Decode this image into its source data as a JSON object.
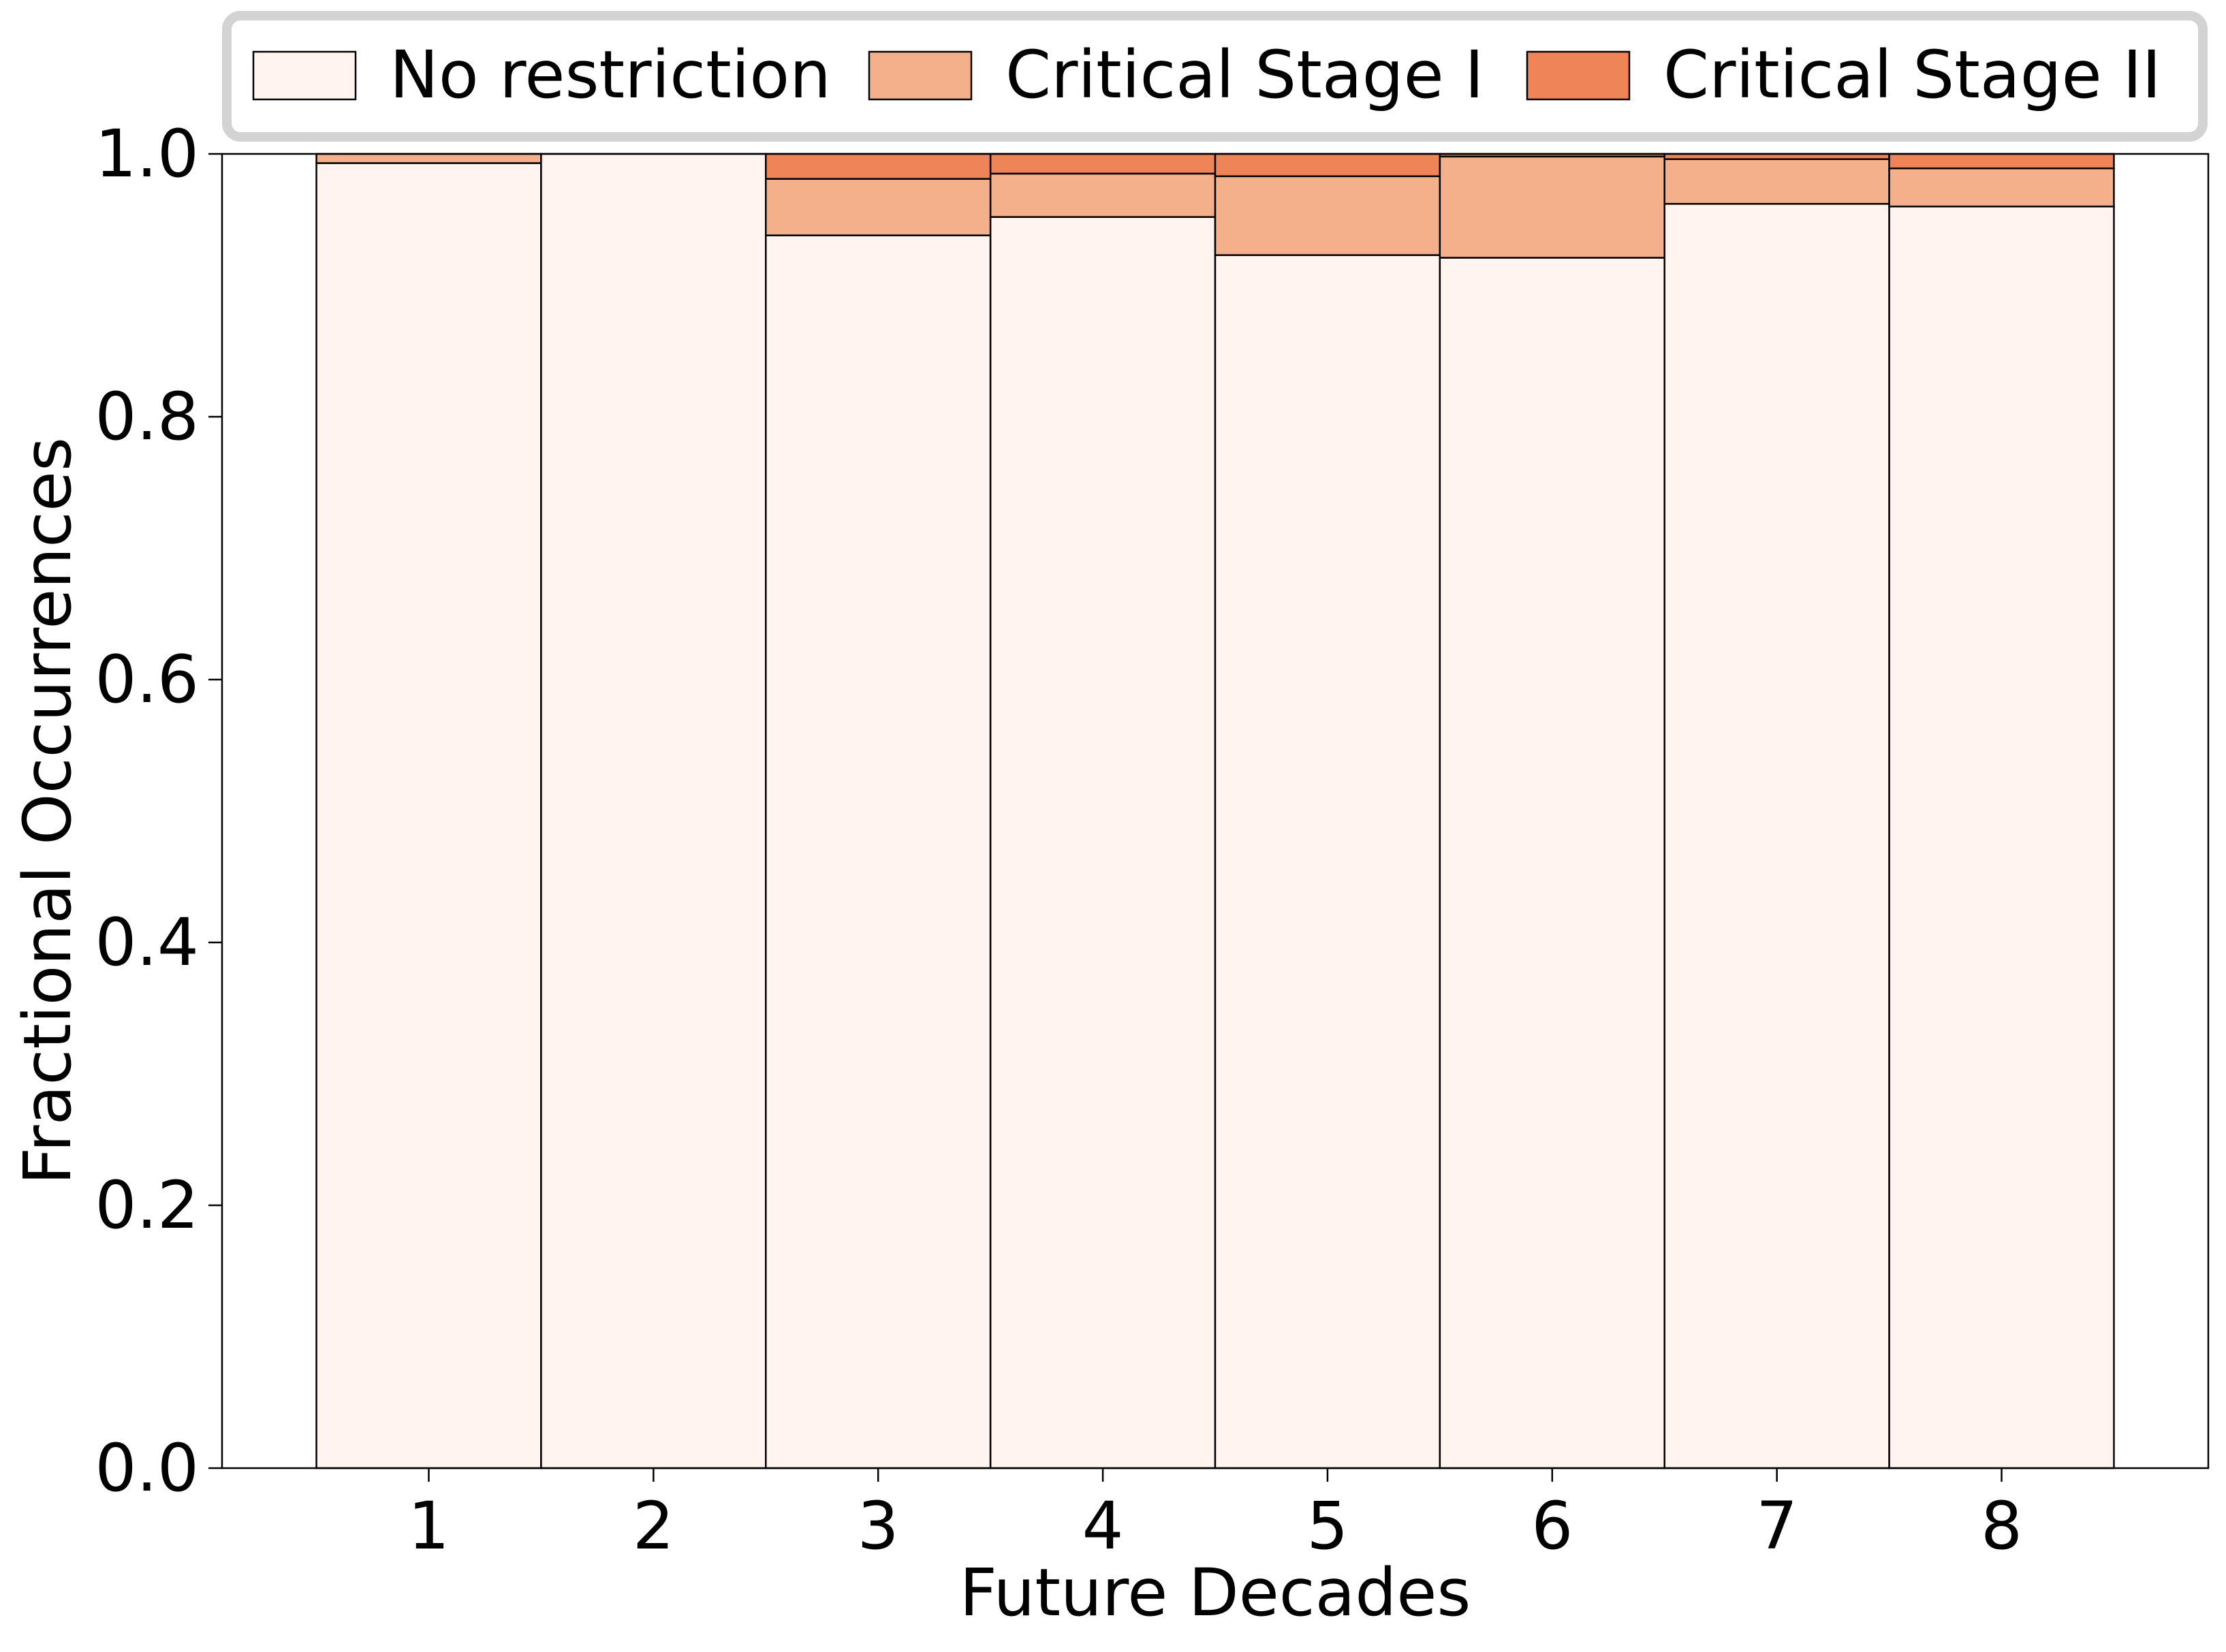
{
  "chart_data": {
    "type": "bar",
    "stacked": true,
    "xlabel": "Future Decades",
    "ylabel": "Fractional Occurrences",
    "categories": [
      "1",
      "2",
      "3",
      "4",
      "5",
      "6",
      "7",
      "8"
    ],
    "ylim": [
      0,
      1.0
    ],
    "yticks": [
      "0.0",
      "0.2",
      "0.4",
      "0.6",
      "0.8",
      "1.0"
    ],
    "grid": false,
    "legend_position": "top",
    "series": [
      {
        "name": "No restriction",
        "color": "#fff4ef",
        "values": [
          0.993,
          1.0,
          0.938,
          0.952,
          0.923,
          0.921,
          0.962,
          0.96
        ]
      },
      {
        "name": "Critical Stage I",
        "color": "#f4b08b",
        "values": [
          0.007,
          0.0,
          0.043,
          0.033,
          0.06,
          0.077,
          0.034,
          0.029
        ]
      },
      {
        "name": "Critical Stage II",
        "color": "#ef8459",
        "values": [
          0.0,
          0.0,
          0.019,
          0.015,
          0.017,
          0.002,
          0.004,
          0.011
        ]
      }
    ]
  }
}
